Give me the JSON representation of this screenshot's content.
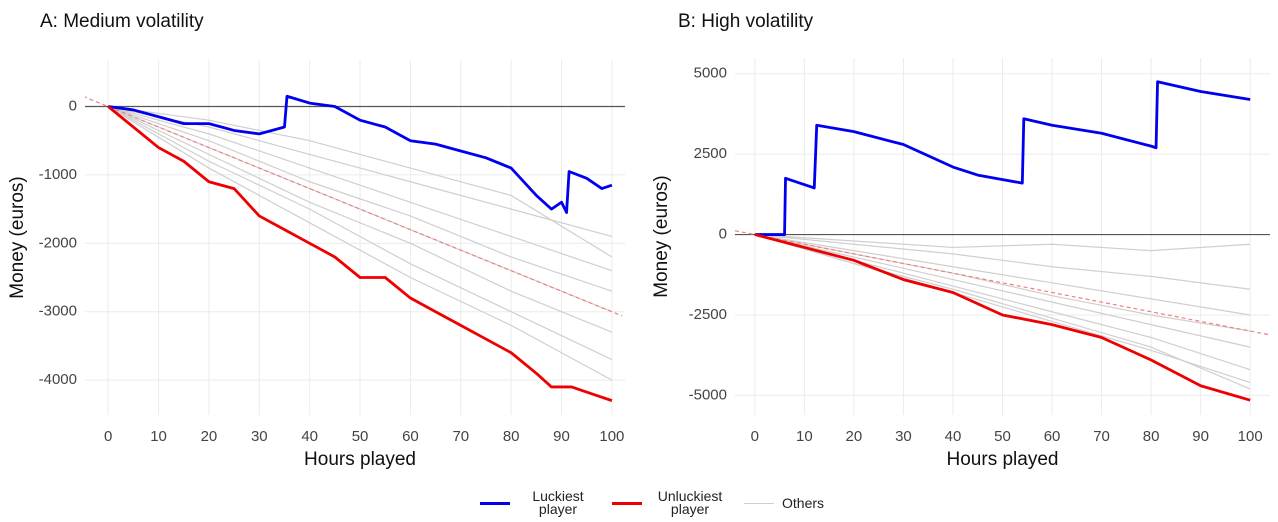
{
  "chart_data": [
    {
      "type": "line",
      "title": "A: Medium volatility",
      "xlabel": "Hours played",
      "ylabel": "Money (euros)",
      "xlim": [
        -4.6,
        102.6
      ],
      "ylim": [
        -4510,
        680
      ],
      "xticks": [
        0,
        10,
        20,
        30,
        40,
        50,
        60,
        70,
        80,
        90,
        100
      ],
      "yticks": [
        0,
        -1000,
        -2000,
        -3000,
        -4000
      ],
      "grid": true,
      "hline": 0,
      "expected": {
        "color": "#f08080",
        "x": [
          -5,
          102
        ],
        "values": [
          150,
          -3060
        ]
      },
      "others": {
        "name": "Others",
        "color": "#cfcfcf",
        "x": [
          0,
          20,
          40,
          60,
          80,
          100
        ],
        "lines": [
          [
            0,
            -300,
            -700,
            -1100,
            -1500,
            -1900
          ],
          [
            0,
            -400,
            -900,
            -1400,
            -1900,
            -2400
          ],
          [
            0,
            -500,
            -1100,
            -1600,
            -2200,
            -2700
          ],
          [
            0,
            -600,
            -1200,
            -1800,
            -2400,
            -3000
          ],
          [
            0,
            -700,
            -1400,
            -2000,
            -2700,
            -3300
          ],
          [
            0,
            -800,
            -1500,
            -2300,
            -3000,
            -3700
          ],
          [
            0,
            -200,
            -500,
            -900,
            -1300,
            -2200
          ],
          [
            0,
            -900,
            -1700,
            -2500,
            -3200,
            -4000
          ]
        ]
      },
      "series": [
        {
          "name": "Luckiest player",
          "color": "#0000ee",
          "x": [
            0,
            5,
            10,
            15,
            20,
            25,
            30,
            35,
            35.5,
            40,
            45,
            50,
            55,
            60,
            65,
            70,
            75,
            80,
            85,
            88,
            90,
            91,
            91.5,
            95,
            98,
            100
          ],
          "values": [
            0,
            -50,
            -150,
            -250,
            -250,
            -350,
            -400,
            -300,
            150,
            50,
            0,
            -200,
            -300,
            -500,
            -550,
            -650,
            -750,
            -900,
            -1300,
            -1500,
            -1400,
            -1550,
            -950,
            -1050,
            -1200,
            -1150
          ]
        },
        {
          "name": "Unluckiest player",
          "color": "#ee0000",
          "x": [
            0,
            5,
            10,
            15,
            20,
            25,
            30,
            35,
            40,
            45,
            50,
            55,
            60,
            65,
            70,
            75,
            80,
            85,
            88,
            92,
            96,
            100
          ],
          "values": [
            0,
            -300,
            -600,
            -800,
            -1100,
            -1200,
            -1600,
            -1800,
            -2000,
            -2200,
            -2500,
            -2500,
            -2800,
            -3000,
            -3200,
            -3400,
            -3600,
            -3900,
            -4100,
            -4100,
            -4200,
            -4300
          ]
        }
      ]
    },
    {
      "type": "line",
      "title": "B: High volatility",
      "xlabel": "Hours played",
      "ylabel": "Money (euros)",
      "xlim": [
        -4,
        104
      ],
      "ylim": [
        -5610,
        5490
      ],
      "xticks": [
        0,
        10,
        20,
        30,
        40,
        50,
        60,
        70,
        80,
        90,
        100
      ],
      "yticks": [
        5000,
        2500,
        0,
        -2500,
        -5000
      ],
      "grid": true,
      "hline": 0,
      "expected": {
        "color": "#f08080",
        "x": [
          -4,
          104
        ],
        "values": [
          120,
          -3120
        ]
      },
      "others": {
        "name": "Others",
        "color": "#cfcfcf",
        "x": [
          0,
          20,
          40,
          60,
          80,
          100
        ],
        "lines": [
          [
            0,
            -500,
            -1000,
            -1500,
            -2000,
            -2500
          ],
          [
            0,
            -700,
            -1400,
            -2100,
            -2800,
            -3500
          ],
          [
            0,
            -800,
            -1600,
            -2400,
            -3200,
            -4200
          ],
          [
            0,
            -900,
            -1800,
            -2700,
            -3600,
            -4600
          ],
          [
            0,
            -300,
            -600,
            -1000,
            -1300,
            -1700
          ],
          [
            0,
            -200,
            -400,
            -300,
            -500,
            -300
          ],
          [
            0,
            -600,
            -1200,
            -1900,
            -2500,
            -3000
          ],
          [
            0,
            -900,
            -1700,
            -2600,
            -3500,
            -4800
          ]
        ]
      },
      "series": [
        {
          "name": "Luckiest player",
          "color": "#0000ee",
          "x": [
            0,
            6,
            6.2,
            12,
            12.5,
            20,
            30,
            40,
            45,
            54,
            54.3,
            60,
            70,
            80,
            81,
            81.3,
            90,
            100
          ],
          "values": [
            0,
            0,
            1750,
            1450,
            3400,
            3200,
            2800,
            2100,
            1850,
            1600,
            3600,
            3400,
            3150,
            2750,
            2700,
            4750,
            4450,
            4200
          ]
        },
        {
          "name": "Unluckiest player",
          "color": "#ee0000",
          "x": [
            0,
            10,
            20,
            30,
            40,
            50,
            60,
            70,
            80,
            90,
            100
          ],
          "values": [
            0,
            -400,
            -800,
            -1400,
            -1800,
            -2500,
            -2800,
            -3200,
            -3900,
            -4700,
            -5150
          ]
        }
      ]
    }
  ]
}
